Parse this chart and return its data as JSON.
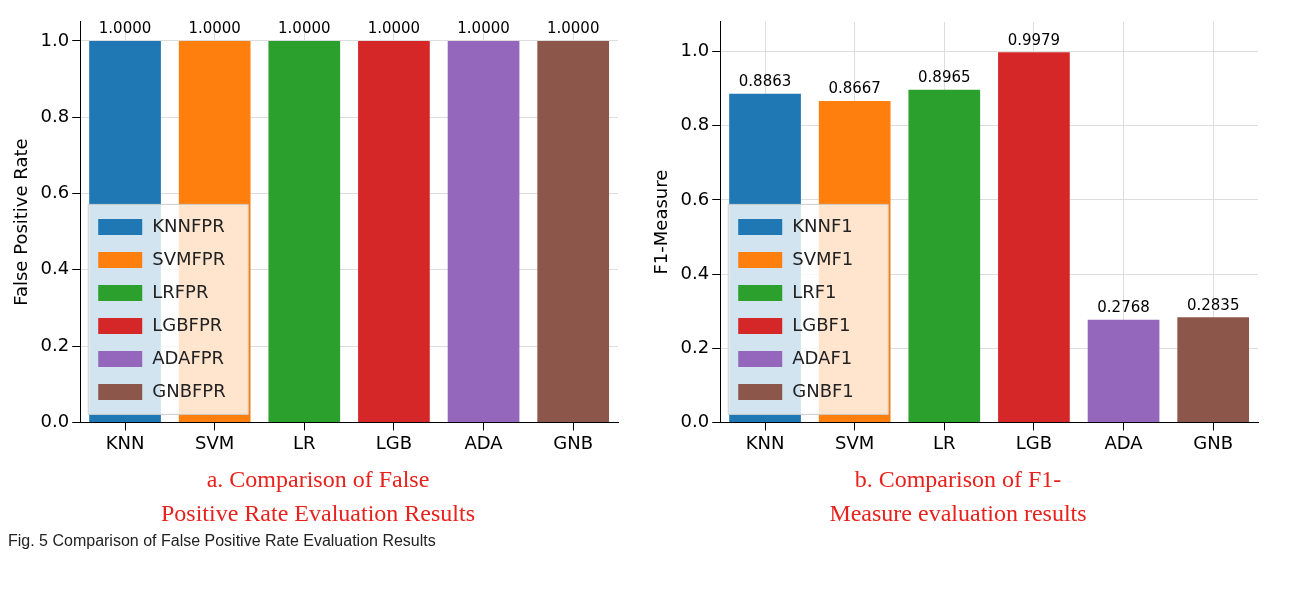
{
  "chart_data": [
    {
      "type": "bar",
      "ylabel": "False Positive Rate",
      "categories": [
        "KNN",
        "SVM",
        "LR",
        "LGB",
        "ADA",
        "GNB"
      ],
      "series": [
        {
          "name": "KNNFPR",
          "color": "#1f77b4",
          "values": [
            1,
            null,
            null,
            null,
            null,
            null
          ],
          "value_labels": [
            "1.0000",
            null,
            null,
            null,
            null,
            null
          ]
        },
        {
          "name": "SVMFPR",
          "color": "#ff7f0e",
          "values": [
            null,
            1,
            null,
            null,
            null,
            null
          ],
          "value_labels": [
            null,
            "1.0000",
            null,
            null,
            null,
            null
          ]
        },
        {
          "name": "LRFPR",
          "color": "#2ca02c",
          "values": [
            null,
            null,
            1,
            null,
            null,
            null
          ],
          "value_labels": [
            null,
            null,
            "1.0000",
            null,
            null,
            null
          ]
        },
        {
          "name": "LGBFPR",
          "color": "#d62728",
          "values": [
            null,
            null,
            null,
            1,
            null,
            null
          ],
          "value_labels": [
            null,
            null,
            null,
            "1.0000",
            null,
            null
          ]
        },
        {
          "name": "ADAFPR",
          "color": "#9467bd",
          "values": [
            null,
            null,
            null,
            null,
            1,
            null
          ],
          "value_labels": [
            null,
            null,
            null,
            null,
            "1.0000",
            null
          ]
        },
        {
          "name": "GNBFPR",
          "color": "#8c564b",
          "values": [
            null,
            null,
            null,
            null,
            null,
            1
          ],
          "value_labels": [
            null,
            null,
            null,
            null,
            null,
            "1.0000"
          ]
        }
      ],
      "ylim": [
        0,
        1.05
      ],
      "yticks": [
        {
          "value": 0,
          "label": "0.0"
        },
        {
          "value": 0.2,
          "label": "0.2"
        },
        {
          "value": 0.4,
          "label": "0.4"
        },
        {
          "value": 0.6,
          "label": "0.6"
        },
        {
          "value": 0.8,
          "label": "0.8"
        },
        {
          "value": 1,
          "label": "1.0"
        }
      ],
      "grid": true,
      "legend": "bottom left",
      "annotations": [
        "a.  Comparison of False\nPositive Rate Evaluation Results",
        "Fig. 5  Comparison of False Positive Rate Evaluation Results"
      ]
    },
    {
      "type": "bar",
      "ylabel": "F1-Measure",
      "categories": [
        "KNN",
        "SVM",
        "LR",
        "LGB",
        "ADA",
        "GNB"
      ],
      "series": [
        {
          "name": "KNNF1",
          "color": "#1f77b4",
          "values": [
            0.8863,
            null,
            null,
            null,
            null,
            null
          ],
          "value_labels": [
            "0.8863",
            null,
            null,
            null,
            null,
            null
          ]
        },
        {
          "name": "SVMF1",
          "color": "#ff7f0e",
          "values": [
            null,
            0.8667,
            null,
            null,
            null,
            null
          ],
          "value_labels": [
            null,
            "0.8667",
            null,
            null,
            null,
            null
          ]
        },
        {
          "name": "LRF1",
          "color": "#2ca02c",
          "values": [
            null,
            null,
            0.8965,
            null,
            null,
            null
          ],
          "value_labels": [
            null,
            null,
            "0.8965",
            null,
            null,
            null
          ]
        },
        {
          "name": "LGBF1",
          "color": "#d62728",
          "values": [
            null,
            null,
            null,
            0.9979,
            null,
            null
          ],
          "value_labels": [
            null,
            null,
            null,
            "0.9979",
            null,
            null
          ]
        },
        {
          "name": "ADAF1",
          "color": "#9467bd",
          "values": [
            null,
            null,
            null,
            null,
            0.2768,
            null
          ],
          "value_labels": [
            null,
            null,
            null,
            null,
            "0.2768",
            null
          ]
        },
        {
          "name": "GNBF1",
          "color": "#8c564b",
          "values": [
            null,
            null,
            null,
            null,
            null,
            0.2835
          ],
          "value_labels": [
            null,
            null,
            null,
            null,
            null,
            "0.2835"
          ]
        }
      ],
      "ylim": [
        0,
        1.08
      ],
      "yticks": [
        {
          "value": 0,
          "label": "0.0"
        },
        {
          "value": 0.2,
          "label": "0.2"
        },
        {
          "value": 0.4,
          "label": "0.4"
        },
        {
          "value": 0.6,
          "label": "0.6"
        },
        {
          "value": 0.8,
          "label": "0.8"
        },
        {
          "value": 1,
          "label": "1.0"
        }
      ],
      "grid": true,
      "legend": "bottom left",
      "annotations": [
        "b. Comparison of F1-\nMeasure evaluation results"
      ]
    }
  ]
}
